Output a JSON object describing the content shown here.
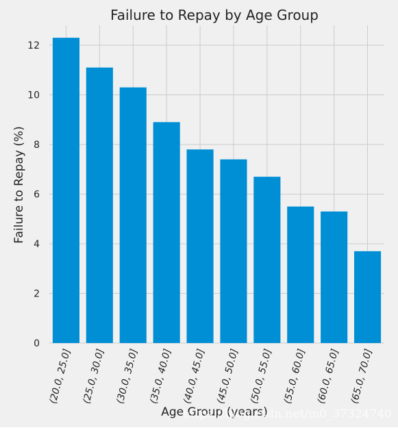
{
  "chart_data": {
    "type": "bar",
    "title": "Failure to Repay by Age Group",
    "xlabel": "Age Group (years)",
    "ylabel": "Failure to Repay (%)",
    "categories": [
      "(20.0, 25.0]",
      "(25.0, 30.0]",
      "(30.0, 35.0]",
      "(35.0, 40.0]",
      "(40.0, 45.0]",
      "(45.0, 50.0]",
      "(50.0, 55.0]",
      "(55.0, 60.0]",
      "(60.0, 65.0]",
      "(65.0, 70.0]"
    ],
    "values": [
      12.3,
      11.1,
      10.3,
      8.9,
      7.8,
      7.4,
      6.7,
      5.5,
      5.3,
      3.7
    ],
    "ylim": [
      0,
      12.8
    ],
    "yticks": [
      0,
      2,
      4,
      6,
      8,
      10,
      12
    ],
    "grid": true,
    "bar_color": "#008fd5",
    "background_color": "#f0f0f0",
    "grid_color": "#cbcbcb"
  },
  "watermark": "https://blog.csdn.net/m0_37324740"
}
